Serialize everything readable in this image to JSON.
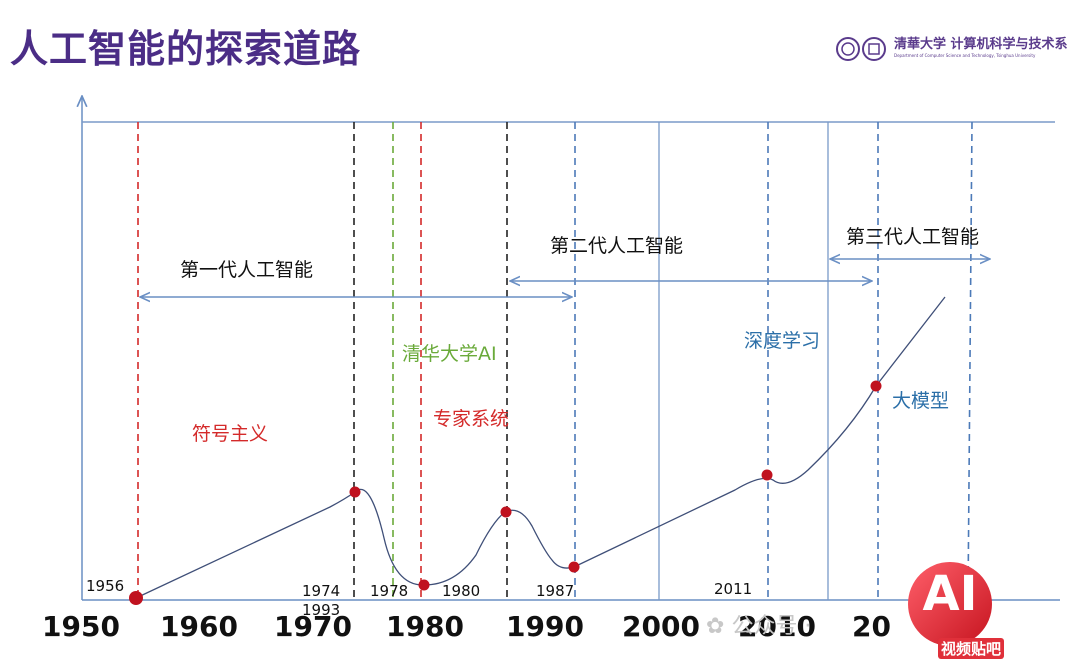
{
  "title": "人工智能的探索道路",
  "logo": {
    "text": "清華大学 计算机科学与技术系",
    "subtitle": "Department of Computer Science and Technology, Tsinghua University"
  },
  "eras": {
    "first": "第一代人工智能",
    "second": "第二代人工智能",
    "third": "第三代人工智能"
  },
  "labels": {
    "symbolism": "符号主义",
    "tsinghua_ai": "清华大学AI",
    "expert": "专家系统",
    "deep": "深度学习",
    "big_model": "大模型"
  },
  "events": [
    "1956",
    "1974",
    "1993",
    "1978",
    "1980",
    "1987",
    "2011"
  ],
  "decades": [
    "1950",
    "1960",
    "1970",
    "1980",
    "1990",
    "2000",
    "2010",
    "20"
  ],
  "watermark": "公众号 ·",
  "badge": {
    "big": "AI",
    "caption": "视频贴吧"
  },
  "colors": {
    "title": "#4b2d86",
    "red": "#d42a2a",
    "green": "#6aaa3a",
    "blue": "#2b6fa8",
    "axis": "#6a8fc4",
    "dot": "#c0121f"
  }
}
